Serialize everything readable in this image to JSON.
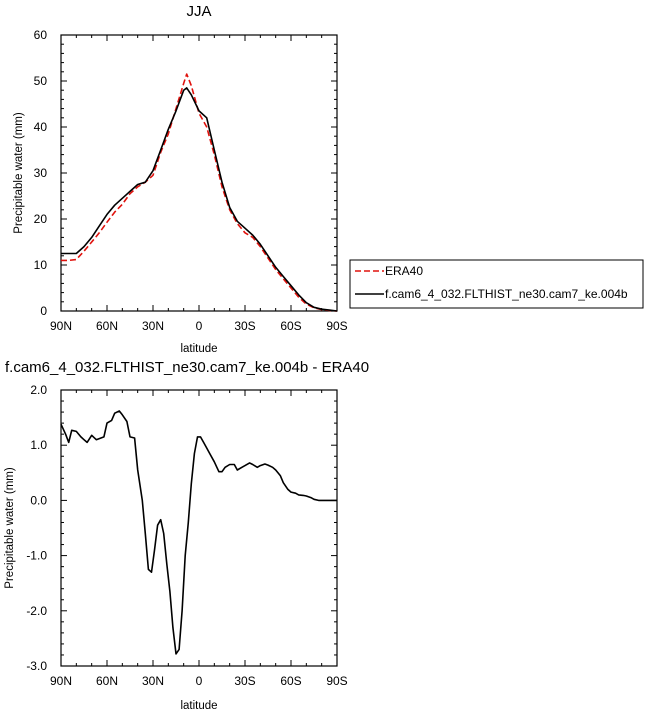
{
  "chart_data": [
    {
      "type": "line",
      "title": "JJA",
      "xlabel": "latitude",
      "ylabel": "Precipitable water (mm)",
      "xlim": [
        90,
        -90
      ],
      "ylim": [
        0,
        60
      ],
      "x_ticks": [
        90,
        60,
        30,
        0,
        -30,
        -60,
        -90
      ],
      "x_tick_labels": [
        "90N",
        "60N",
        "30N",
        "0",
        "30S",
        "60S",
        "90S"
      ],
      "y_ticks": [
        0,
        10,
        20,
        30,
        40,
        50,
        60
      ],
      "y_tick_labels": [
        "0",
        "10",
        "20",
        "30",
        "40",
        "50",
        "60"
      ],
      "legend_position": "right",
      "x": [
        90,
        85,
        80,
        75,
        70,
        65,
        60,
        55,
        50,
        45,
        40,
        35,
        30,
        25,
        20,
        15,
        10,
        8,
        5,
        0,
        -5,
        -10,
        -15,
        -20,
        -25,
        -30,
        -35,
        -40,
        -45,
        -50,
        -55,
        -60,
        -65,
        -70,
        -75,
        -80,
        -85,
        -90
      ],
      "series": [
        {
          "name": "ERA40",
          "color": "#e0120d",
          "dash": "dashed",
          "values": [
            11.0,
            11.0,
            11.2,
            13.0,
            15.0,
            17.0,
            19.3,
            21.5,
            23.2,
            25.5,
            27.0,
            28.0,
            29.5,
            34.5,
            38.5,
            44.0,
            49.5,
            51.5,
            49.0,
            43.0,
            40.0,
            34.0,
            27.0,
            22.0,
            19.0,
            17.0,
            16.0,
            14.0,
            11.5,
            9.0,
            7.0,
            5.0,
            3.0,
            1.5,
            0.7,
            0.3,
            0.1,
            0.0
          ]
        },
        {
          "name": "f.cam6_4_032.FLTHIST_ne30.cam7_ke.004b",
          "color": "#000000",
          "dash": "solid",
          "values": [
            12.5,
            12.5,
            12.5,
            14.0,
            16.0,
            18.5,
            21.0,
            23.0,
            24.5,
            26.0,
            27.5,
            28.0,
            30.5,
            35.0,
            39.5,
            43.5,
            48.0,
            48.5,
            47.0,
            43.5,
            42.0,
            35.0,
            28.0,
            22.5,
            19.5,
            18.0,
            16.5,
            14.5,
            12.0,
            9.5,
            7.5,
            5.5,
            3.5,
            1.8,
            0.8,
            0.4,
            0.2,
            0.0
          ]
        }
      ]
    },
    {
      "type": "line",
      "title": "f.cam6_4_032.FLTHIST_ne30.cam7_ke.004b - ERA40",
      "xlabel": "latitude",
      "ylabel": "Precipitable water (mm)",
      "xlim": [
        90,
        -90
      ],
      "ylim": [
        -3.0,
        2.0
      ],
      "x_ticks": [
        90,
        60,
        30,
        0,
        -30,
        -60,
        -90
      ],
      "x_tick_labels": [
        "90N",
        "60N",
        "30N",
        "0",
        "30S",
        "60S",
        "90S"
      ],
      "y_ticks": [
        -3.0,
        -2.0,
        -1.0,
        0.0,
        1.0,
        2.0
      ],
      "y_tick_labels": [
        "-3.0",
        "-2.0",
        "-1.0",
        "0.0",
        "1.0",
        "2.0"
      ],
      "x": [
        90,
        87,
        85,
        83,
        80,
        77,
        75,
        73,
        70,
        67,
        65,
        62,
        60,
        57,
        55,
        52,
        50,
        47,
        45,
        42,
        40,
        37,
        35,
        33,
        31,
        29,
        27,
        25,
        23,
        21,
        19,
        17,
        15,
        13,
        11,
        9,
        7,
        5,
        3,
        1,
        -1,
        -3,
        -5,
        -7,
        -10,
        -13,
        -15,
        -17,
        -20,
        -23,
        -25,
        -28,
        -30,
        -33,
        -35,
        -38,
        -40,
        -43,
        -45,
        -48,
        -50,
        -53,
        -55,
        -58,
        -60,
        -63,
        -65,
        -68,
        -70,
        -73,
        -75,
        -78,
        -80,
        -83,
        -85,
        -88,
        -90
      ],
      "series": [
        {
          "name": "",
          "color": "#000000",
          "dash": "solid",
          "values": [
            1.38,
            1.2,
            1.05,
            1.27,
            1.25,
            1.15,
            1.1,
            1.05,
            1.18,
            1.1,
            1.12,
            1.15,
            1.4,
            1.45,
            1.58,
            1.62,
            1.55,
            1.43,
            1.15,
            1.13,
            0.55,
            0.0,
            -0.6,
            -1.25,
            -1.3,
            -0.9,
            -0.45,
            -0.35,
            -0.6,
            -1.15,
            -1.65,
            -2.3,
            -2.78,
            -2.7,
            -2.0,
            -1.0,
            -0.4,
            0.3,
            0.85,
            1.15,
            1.15,
            1.05,
            0.95,
            0.85,
            0.7,
            0.52,
            0.52,
            0.6,
            0.65,
            0.65,
            0.55,
            0.6,
            0.63,
            0.68,
            0.65,
            0.6,
            0.63,
            0.66,
            0.64,
            0.6,
            0.55,
            0.45,
            0.32,
            0.2,
            0.15,
            0.13,
            0.1,
            0.09,
            0.08,
            0.05,
            0.02,
            0.0,
            0.0,
            0.0,
            0.0,
            0.0,
            0.0
          ]
        }
      ]
    }
  ]
}
